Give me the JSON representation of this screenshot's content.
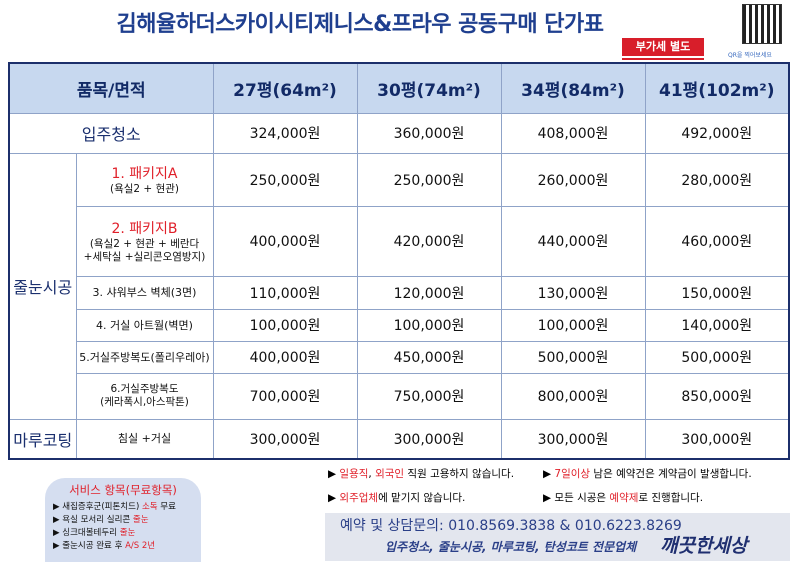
{
  "header": {
    "title": "김해율하더스카이시티제니스&프라우 공동구매 단가표",
    "badge": "부가세 별도",
    "qr_caption": "QR을 찍어보세요"
  },
  "table": {
    "header": [
      "품목/면적",
      "27평(64m²)",
      "30평(74m²)",
      "34평(84m²)",
      "41평(102m²)"
    ],
    "sections": [
      {
        "name": "입주청소",
        "prices": [
          "324,000원",
          "360,000원",
          "408,000원",
          "492,000원"
        ]
      },
      {
        "name": "줄눈시공",
        "items": [
          {
            "title": "1. 패키지A",
            "highlight": true,
            "detail": [
              "(욕실2 + 현관)"
            ],
            "prices": [
              "250,000원",
              "250,000원",
              "260,000원",
              "280,000원"
            ]
          },
          {
            "title": "2. 패키지B",
            "highlight": true,
            "detail": [
              "(욕실2 + 현관 + 베란다",
              "+세탁실 +실리콘오염방지)"
            ],
            "prices": [
              "400,000원",
              "420,000원",
              "440,000원",
              "460,000원"
            ]
          },
          {
            "title": "3. 샤워부스 벽체(3면)",
            "highlight": false,
            "detail": [],
            "prices": [
              "110,000원",
              "120,000원",
              "130,000원",
              "150,000원"
            ]
          },
          {
            "title": "4. 거실 아트월(벽면)",
            "highlight": false,
            "detail": [],
            "prices": [
              "100,000원",
              "100,000원",
              "100,000원",
              "140,000원"
            ]
          },
          {
            "title": "5.거실주방복도(폴리우레아)",
            "highlight": false,
            "detail": [],
            "prices": [
              "400,000원",
              "450,000원",
              "500,000원",
              "500,000원"
            ]
          },
          {
            "title": "6.거실주방복도",
            "highlight": false,
            "detail": [
              "(케라폭시,아스팍톤)"
            ],
            "prices": [
              "700,000원",
              "750,000원",
              "800,000원",
              "850,000원"
            ]
          }
        ]
      },
      {
        "name": "마루코팅",
        "items": [
          {
            "title": "침실 +거실",
            "highlight": false,
            "detail": [],
            "prices": [
              "300,000원",
              "300,000원",
              "300,000원",
              "300,000원"
            ]
          }
        ]
      }
    ]
  },
  "service": {
    "title": "서비스 항목(무료항목)",
    "items": [
      [
        {
          "text": "새집증후군(피톤치드) ",
          "highlight": false
        },
        {
          "text": "소독",
          "highlight": true
        },
        {
          "text": " 무료",
          "highlight": false
        }
      ],
      [
        {
          "text": "욕실 모서리 실리콘 ",
          "highlight": false
        },
        {
          "text": "줄눈",
          "highlight": true
        }
      ],
      [
        {
          "text": "싱크대볼테두리 ",
          "highlight": false
        },
        {
          "text": "줄눈",
          "highlight": true
        }
      ],
      [
        {
          "text": "줄눈시공 완료 후 ",
          "highlight": false
        },
        {
          "text": "A/S 2년",
          "highlight": true
        }
      ]
    ]
  },
  "notes": [
    [
      {
        "text": "일용직",
        "highlight": true
      },
      {
        "text": ", ",
        "highlight": false
      },
      {
        "text": "외국인",
        "highlight": true
      },
      {
        "text": " 직원 고용하지 않습니다.",
        "highlight": false
      }
    ],
    [
      {
        "text": "7일이상",
        "highlight": true
      },
      {
        "text": " 남은 예약건은 계약금이 발생합니다.",
        "highlight": false
      }
    ],
    [
      {
        "text": "외주업체",
        "highlight": true
      },
      {
        "text": "에 맡기지 않습니다.",
        "highlight": false
      }
    ],
    [
      {
        "text": "모든 시공은 ",
        "highlight": false
      },
      {
        "text": "예약제",
        "highlight": true
      },
      {
        "text": "로 진행합니다.",
        "highlight": false
      }
    ]
  ],
  "contact": {
    "phone": "예약 및 상담문의: 010.8569.3838 & 010.6223.8269",
    "slogan": "입주청소, 줄눈시공, 마루코팅, 탄성코트 전문업체",
    "brand": "깨끗한세상"
  }
}
